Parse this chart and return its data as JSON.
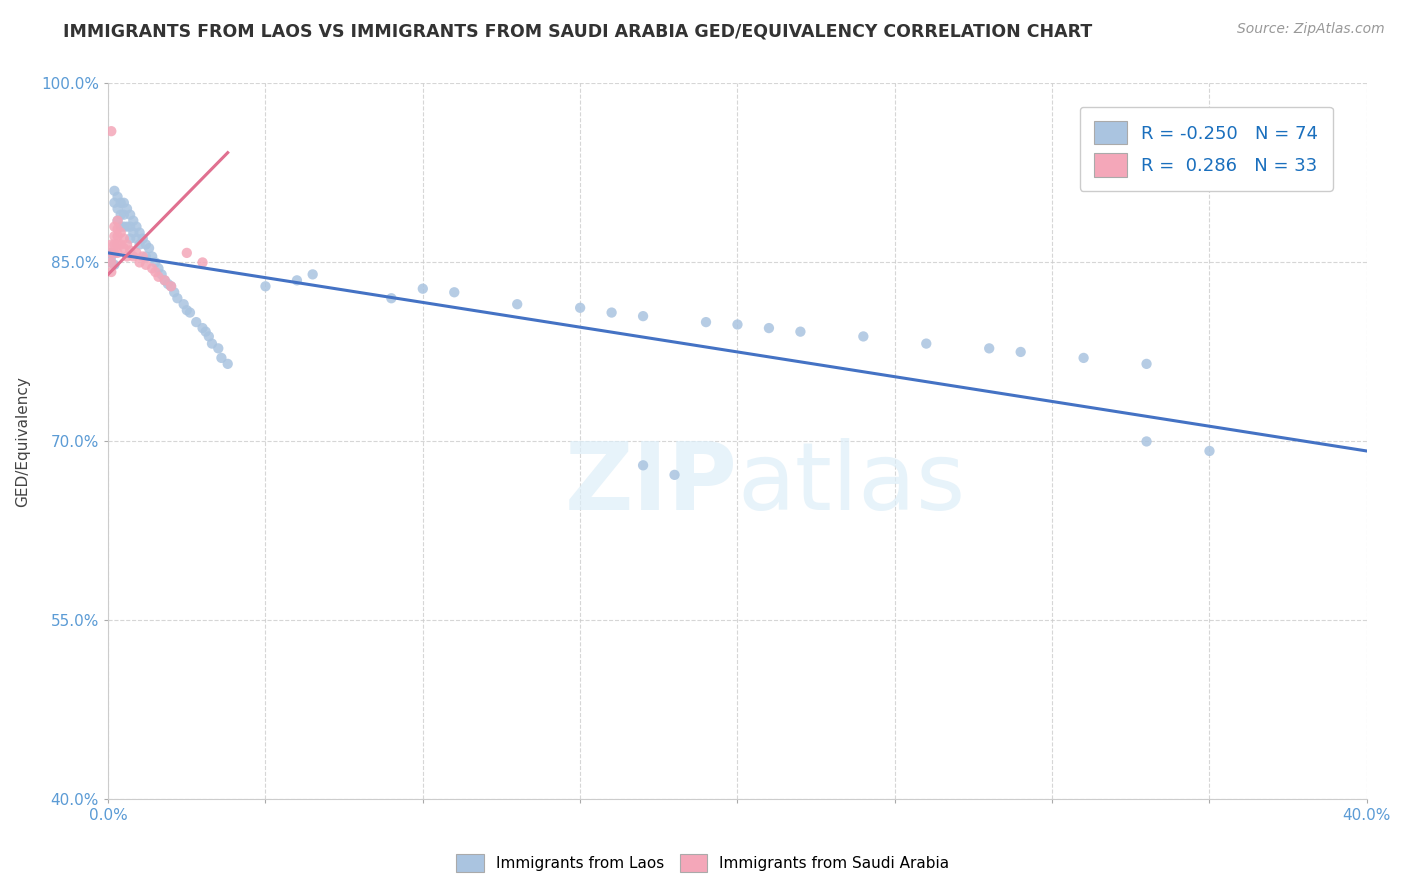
{
  "title": "IMMIGRANTS FROM LAOS VS IMMIGRANTS FROM SAUDI ARABIA GED/EQUIVALENCY CORRELATION CHART",
  "source": "Source: ZipAtlas.com",
  "ylabel": "GED/Equivalency",
  "xlim": [
    0.0,
    0.4
  ],
  "ylim": [
    0.4,
    1.0
  ],
  "xticks": [
    0.0,
    0.05,
    0.1,
    0.15,
    0.2,
    0.25,
    0.3,
    0.35,
    0.4
  ],
  "yticks": [
    0.4,
    0.55,
    0.7,
    0.85,
    1.0
  ],
  "ytick_labels": [
    "40.0%",
    "55.0%",
    "70.0%",
    "85.0%",
    "100.0%"
  ],
  "xtick_labels": [
    "0.0%",
    "",
    "",
    "",
    "",
    "",
    "",
    "",
    "40.0%"
  ],
  "laos_color": "#aac4e0",
  "saudi_color": "#f4a7b9",
  "laos_line_color": "#4472c4",
  "saudi_line_color": "#e07090",
  "laos_R": -0.25,
  "laos_N": 74,
  "saudi_R": 0.286,
  "saudi_N": 33,
  "legend_R_color": "#1a6fbd",
  "legend_label_laos": "Immigrants from Laos",
  "legend_label_saudi": "Immigrants from Saudi Arabia",
  "watermark_zip": "ZIP",
  "watermark_atlas": "atlas",
  "background_color": "#ffffff",
  "grid_color": "#cccccc",
  "laos_trend_x": [
    0.0,
    0.4
  ],
  "laos_trend_y": [
    0.858,
    0.692
  ],
  "saudi_trend_x": [
    0.0,
    0.038
  ],
  "saudi_trend_y": [
    0.84,
    0.942
  ],
  "laos_x": [
    0.002,
    0.002,
    0.003,
    0.003,
    0.003,
    0.004,
    0.004,
    0.004,
    0.005,
    0.005,
    0.005,
    0.006,
    0.006,
    0.007,
    0.007,
    0.007,
    0.008,
    0.008,
    0.009,
    0.009,
    0.01,
    0.01,
    0.011,
    0.012,
    0.012,
    0.013,
    0.014,
    0.015,
    0.016,
    0.017,
    0.018,
    0.019,
    0.02,
    0.021,
    0.022,
    0.024,
    0.025,
    0.026,
    0.028,
    0.03,
    0.031,
    0.032,
    0.033,
    0.035,
    0.036,
    0.038,
    0.001,
    0.001,
    0.001,
    0.002,
    0.05,
    0.06,
    0.065,
    0.09,
    0.1,
    0.11,
    0.13,
    0.15,
    0.16,
    0.17,
    0.19,
    0.2,
    0.21,
    0.22,
    0.24,
    0.26,
    0.28,
    0.29,
    0.31,
    0.33,
    0.17,
    0.18,
    0.33,
    0.35
  ],
  "laos_y": [
    0.91,
    0.9,
    0.905,
    0.895,
    0.885,
    0.9,
    0.89,
    0.88,
    0.9,
    0.89,
    0.88,
    0.895,
    0.88,
    0.89,
    0.88,
    0.87,
    0.885,
    0.875,
    0.88,
    0.87,
    0.875,
    0.865,
    0.87,
    0.865,
    0.855,
    0.862,
    0.855,
    0.85,
    0.845,
    0.84,
    0.835,
    0.832,
    0.83,
    0.825,
    0.82,
    0.815,
    0.81,
    0.808,
    0.8,
    0.795,
    0.792,
    0.788,
    0.782,
    0.778,
    0.77,
    0.765,
    0.858,
    0.855,
    0.85,
    0.848,
    0.83,
    0.835,
    0.84,
    0.82,
    0.828,
    0.825,
    0.815,
    0.812,
    0.808,
    0.805,
    0.8,
    0.798,
    0.795,
    0.792,
    0.788,
    0.782,
    0.778,
    0.775,
    0.77,
    0.765,
    0.68,
    0.672,
    0.7,
    0.692
  ],
  "saudi_x": [
    0.001,
    0.001,
    0.001,
    0.001,
    0.002,
    0.002,
    0.002,
    0.002,
    0.003,
    0.003,
    0.003,
    0.003,
    0.003,
    0.004,
    0.004,
    0.005,
    0.005,
    0.006,
    0.006,
    0.007,
    0.008,
    0.009,
    0.01,
    0.011,
    0.012,
    0.014,
    0.015,
    0.016,
    0.018,
    0.02,
    0.025,
    0.03,
    0.001
  ],
  "saudi_y": [
    0.865,
    0.858,
    0.85,
    0.842,
    0.88,
    0.872,
    0.865,
    0.858,
    0.885,
    0.878,
    0.872,
    0.865,
    0.858,
    0.875,
    0.865,
    0.87,
    0.862,
    0.865,
    0.855,
    0.86,
    0.855,
    0.858,
    0.85,
    0.855,
    0.848,
    0.845,
    0.842,
    0.838,
    0.835,
    0.83,
    0.858,
    0.85,
    0.96
  ]
}
